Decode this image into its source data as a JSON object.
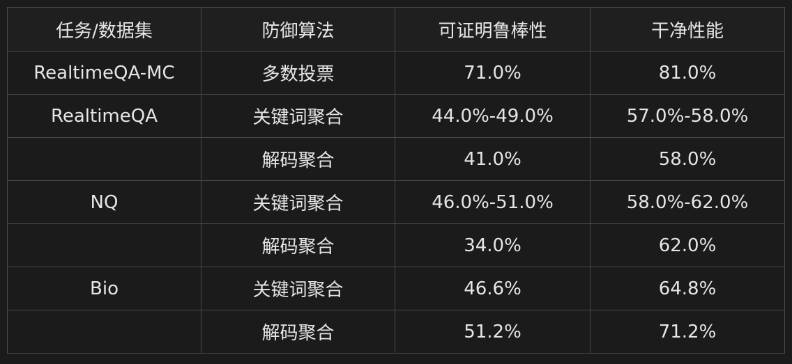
{
  "table": {
    "headers": [
      "任务/数据集",
      "防御算法",
      "可证明鲁棒性",
      "干净性能"
    ],
    "rows": [
      [
        "RealtimeQA-MC",
        "多数投票",
        "71.0%",
        "81.0%"
      ],
      [
        "RealtimeQA",
        "关键词聚合",
        "44.0%-49.0%",
        "57.0%-58.0%"
      ],
      [
        "",
        "解码聚合",
        "41.0%",
        "58.0%"
      ],
      [
        "NQ",
        "关键词聚合",
        "46.0%-51.0%",
        "58.0%-62.0%"
      ],
      [
        "",
        "解码聚合",
        "34.0%",
        "62.0%"
      ],
      [
        "Bio",
        "关键词聚合",
        "46.6%",
        "64.8%"
      ],
      [
        "",
        "解码聚合",
        "51.2%",
        "71.2%"
      ]
    ]
  }
}
